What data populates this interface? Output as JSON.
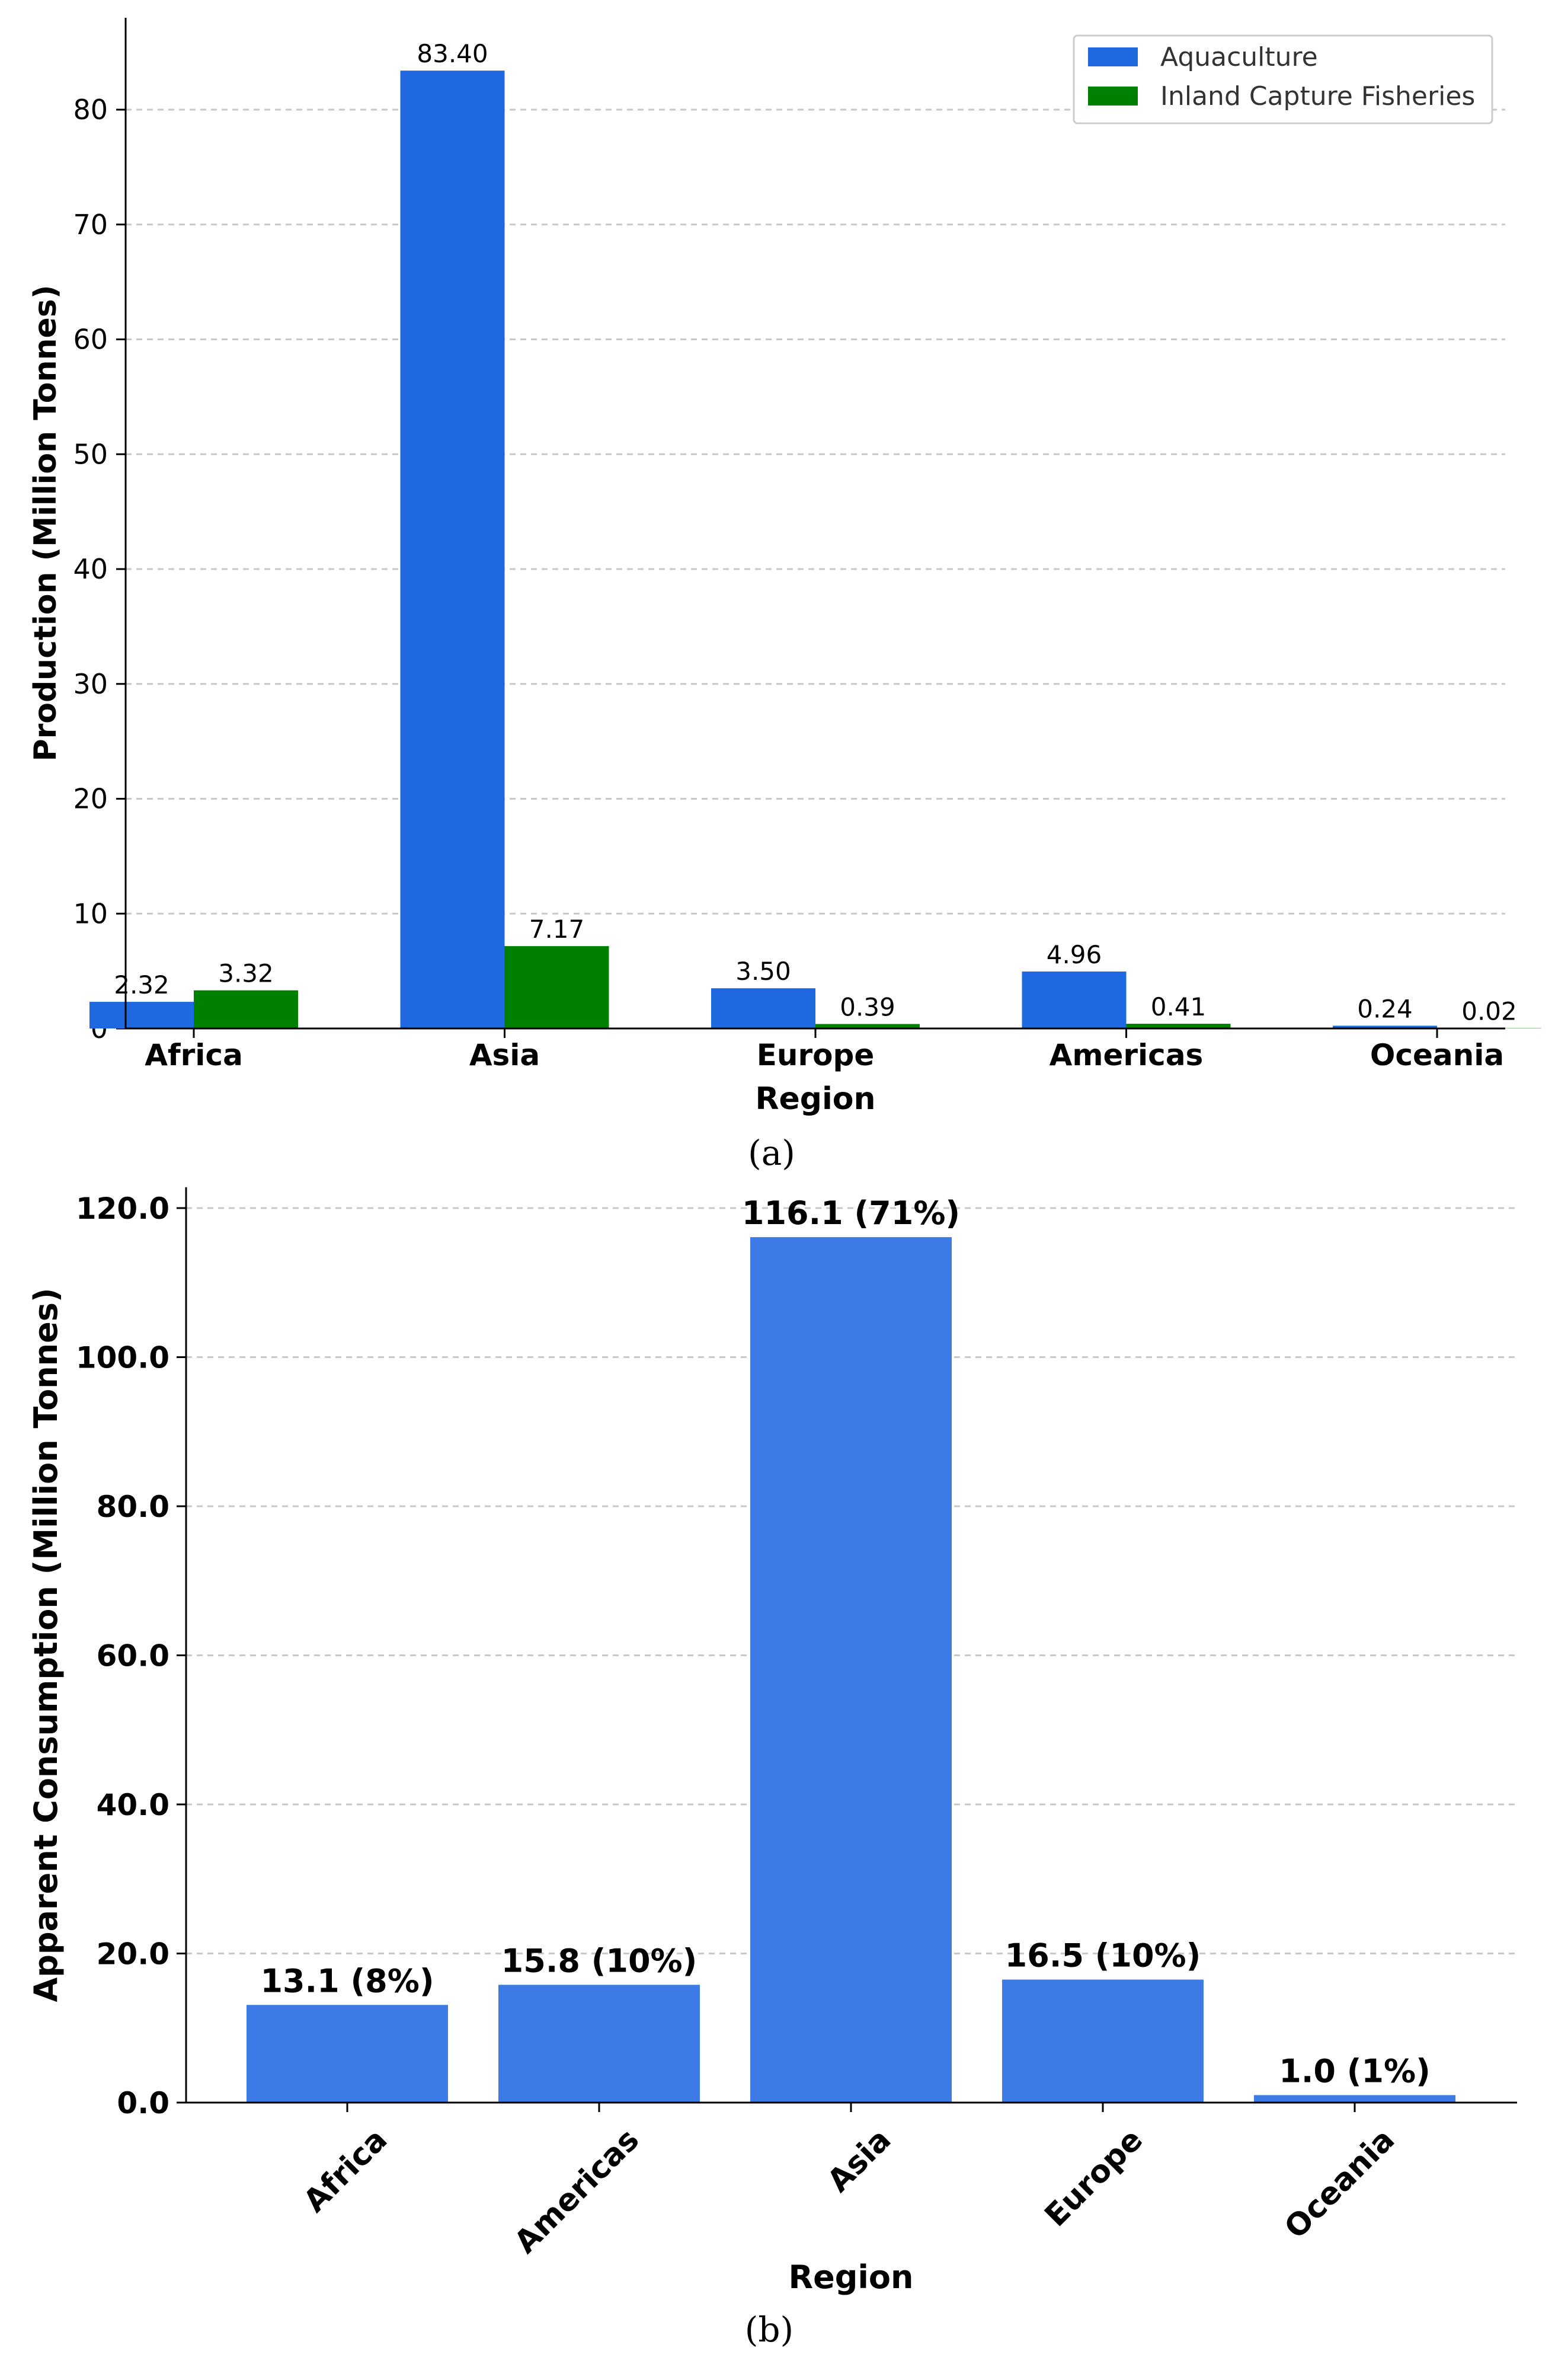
{
  "colors": {
    "aquaculture": "#1f69e0",
    "inland": "#008000",
    "consumption": "#3c7ae6",
    "grid": "#c8c8c8",
    "axis": "#000000"
  },
  "chart_data": [
    {
      "id": "panel-a",
      "type": "bar",
      "caption": "(a)",
      "title": "",
      "xlabel": "Region",
      "ylabel": "Production (Million Tonnes)",
      "ylim": [
        0,
        88
      ],
      "yticks": [
        0,
        10,
        20,
        30,
        40,
        50,
        60,
        70,
        80
      ],
      "ytick_labels": [
        "0",
        "10",
        "20",
        "30",
        "40",
        "50",
        "60",
        "70",
        "80"
      ],
      "grid": true,
      "legend_position": "top-right",
      "categories": [
        "Africa",
        "Asia",
        "Europe",
        "Americas",
        "Oceania"
      ],
      "series": [
        {
          "name": "Aquaculture",
          "color_key": "aquaculture",
          "values": [
            2.32,
            83.4,
            3.5,
            4.96,
            0.24
          ],
          "labels": [
            "2.32",
            "83.40",
            "3.50",
            "4.96",
            "0.24"
          ]
        },
        {
          "name": "Inland Capture Fisheries",
          "color_key": "inland",
          "values": [
            3.32,
            7.17,
            0.39,
            0.41,
            0.02
          ],
          "labels": [
            "3.32",
            "7.17",
            "0.39",
            "0.41",
            "0.02"
          ]
        }
      ]
    },
    {
      "id": "panel-b",
      "type": "bar",
      "caption": "(b)",
      "title": "",
      "xlabel": "Region",
      "ylabel": "Apparent Consumption (Million Tonnes)",
      "ylim": [
        0,
        122
      ],
      "yticks": [
        0,
        20,
        40,
        60,
        80,
        100,
        120
      ],
      "ytick_labels": [
        "0.0",
        "20.0",
        "40.0",
        "60.0",
        "80.0",
        "100.0",
        "120.0"
      ],
      "grid": true,
      "categories": [
        "Africa",
        "Americas",
        "Asia",
        "Europe",
        "Oceania"
      ],
      "series": [
        {
          "name": "Apparent Consumption",
          "color_key": "consumption",
          "values": [
            13.1,
            15.8,
            116.1,
            16.5,
            1.0
          ],
          "labels": [
            "13.1 (8%)",
            "15.8 (10%)",
            "116.1 (71%)",
            "16.5 (10%)",
            "1.0 (1%)"
          ]
        }
      ]
    }
  ]
}
